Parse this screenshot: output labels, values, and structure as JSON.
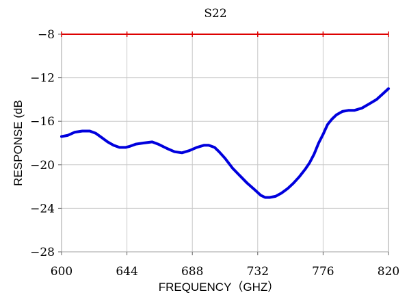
{
  "chart_data": {
    "type": "line",
    "title": "S22",
    "xlabel": "FREQUENCY（GHZ）",
    "ylabel": "RESPONSE (dB",
    "xlim": [
      600,
      820
    ],
    "ylim": [
      -28,
      -8
    ],
    "x_ticks": [
      600,
      644,
      688,
      732,
      776,
      820
    ],
    "y_ticks": [
      -8,
      -12,
      -16,
      -20,
      -24,
      -28
    ],
    "x_tick_labels": [
      "600",
      "644",
      "688",
      "732",
      "776",
      "820"
    ],
    "y_tick_labels": [
      "−8",
      "−12",
      "−16",
      "−20",
      "−24",
      "−28"
    ],
    "grid": true,
    "colors": {
      "series": "#0000dd",
      "reference": "#dd0000",
      "grid": "#c8c8c8",
      "frame": "#a0a0a0"
    },
    "reference_line": {
      "y": -8
    },
    "series": [
      {
        "values_x": [
          600,
          604,
          609,
          614,
          619,
          623,
          627,
          631,
          635,
          639,
          643,
          646,
          650,
          655,
          661,
          665,
          671,
          676,
          681,
          686,
          691,
          696,
          699,
          703,
          706,
          710,
          715,
          720,
          725,
          730,
          734,
          737,
          740,
          744,
          748,
          752,
          756,
          760,
          764,
          767,
          770,
          773,
          776,
          779,
          782,
          785,
          789,
          793,
          797,
          802,
          807,
          812,
          816,
          820
        ],
        "values_y": [
          -17.4,
          -17.3,
          -17.0,
          -16.9,
          -16.9,
          -17.1,
          -17.5,
          -17.9,
          -18.2,
          -18.4,
          -18.4,
          -18.3,
          -18.1,
          -18.0,
          -17.9,
          -18.1,
          -18.5,
          -18.8,
          -18.9,
          -18.7,
          -18.4,
          -18.2,
          -18.2,
          -18.4,
          -18.8,
          -19.4,
          -20.3,
          -21.0,
          -21.7,
          -22.3,
          -22.8,
          -23.0,
          -23.0,
          -22.9,
          -22.6,
          -22.2,
          -21.7,
          -21.1,
          -20.4,
          -19.8,
          -19.0,
          -18.0,
          -17.2,
          -16.3,
          -15.8,
          -15.4,
          -15.1,
          -15.0,
          -15.0,
          -14.8,
          -14.4,
          -14.0,
          -13.5,
          -13.0
        ]
      }
    ]
  }
}
